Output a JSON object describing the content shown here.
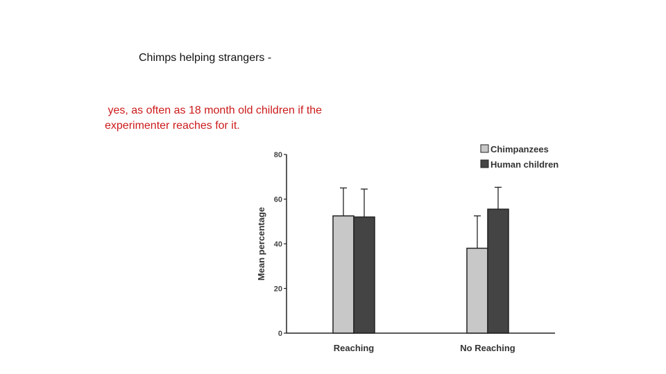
{
  "slide": {
    "title": "Chimps helping strangers -",
    "answer_lines": [
      " yes, as often as 18 month old children if the",
      "experimenter reaches for it."
    ],
    "answer_color": "#cc1a1a"
  },
  "chart_data": {
    "type": "bar",
    "categories": [
      "Reaching",
      "No Reaching"
    ],
    "series": [
      {
        "name": "Chimpanzees",
        "values": [
          52.5,
          38
        ],
        "errors": [
          12.5,
          14.5
        ],
        "color": "#c8c8c8"
      },
      {
        "name": "Human children",
        "values": [
          52,
          55.5
        ],
        "errors": [
          12.5,
          9.8
        ],
        "color": "#444444"
      }
    ],
    "title": "",
    "xlabel": "",
    "ylabel": "Mean percentage",
    "ylim": [
      0,
      80
    ],
    "yticks": [
      0,
      20,
      40,
      60,
      80
    ],
    "grid": false,
    "legend_position": "top-right",
    "error_bars": "upper only"
  }
}
